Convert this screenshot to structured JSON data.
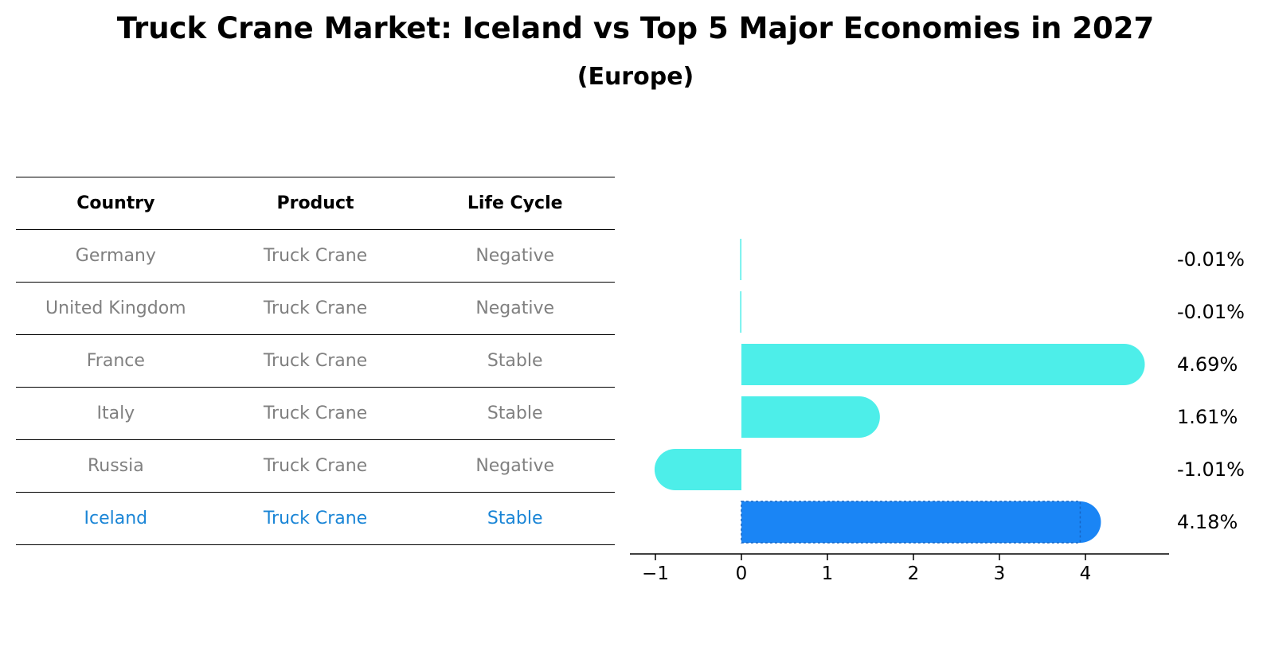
{
  "title": "Truck Crane Market: Iceland vs Top 5 Major Economies in 2027",
  "subtitle": "(Europe)",
  "table": {
    "headers": [
      "Country",
      "Product",
      "Life Cycle"
    ],
    "rows": [
      [
        "Germany",
        "Truck Crane",
        "Negative"
      ],
      [
        "United Kingdom",
        "Truck Crane",
        "Negative"
      ],
      [
        "France",
        "Truck Crane",
        "Stable"
      ],
      [
        "Italy",
        "Truck Crane",
        "Stable"
      ],
      [
        "Russia",
        "Truck Crane",
        "Negative"
      ],
      [
        "Iceland",
        "Truck Crane",
        "Stable"
      ]
    ],
    "highlight_row": 5
  },
  "colors": {
    "bar": "#4deee9",
    "highlight_bar": "#1a85f5",
    "highlight_text": "#1a85d6",
    "muted_text": "#808080"
  },
  "chart_data": {
    "type": "bar",
    "orientation": "horizontal",
    "categories": [
      "Germany",
      "United Kingdom",
      "France",
      "Italy",
      "Russia",
      "Iceland"
    ],
    "values": [
      -0.01,
      -0.01,
      4.69,
      1.61,
      -1.01,
      4.18
    ],
    "value_labels": [
      "-0.01%",
      "-0.01%",
      "4.69%",
      "1.61%",
      "-1.01%",
      "4.18%"
    ],
    "highlight_index": 5,
    "xlim": [
      -1.3,
      5.0
    ],
    "xticks": [
      -1,
      0,
      1,
      2,
      3,
      4
    ],
    "xtick_labels": [
      "−1",
      "0",
      "1",
      "2",
      "3",
      "4"
    ]
  }
}
